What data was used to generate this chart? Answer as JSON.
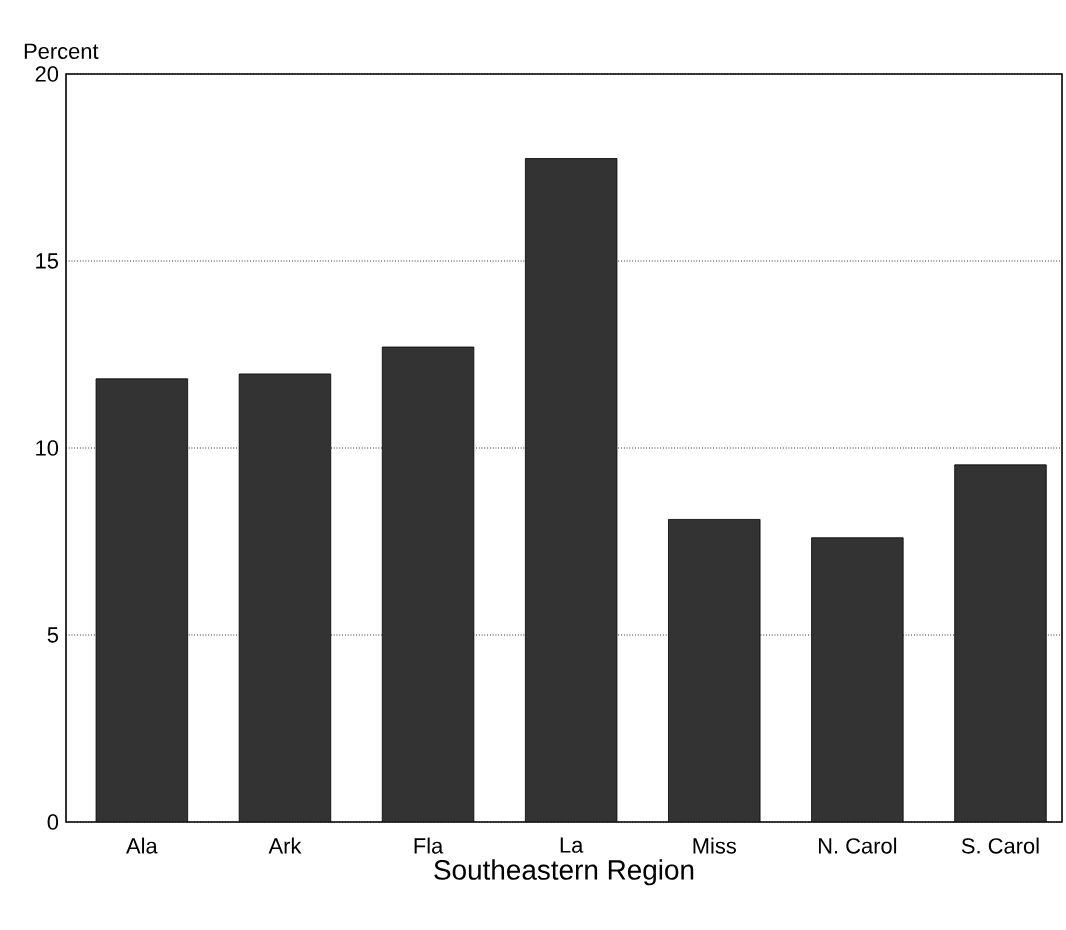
{
  "chart_data": {
    "type": "bar",
    "xlabel": "Southeastern Region",
    "ylabel": "Percent",
    "categories": [
      "Ala",
      "Ark",
      "Fla",
      "La",
      "Miss",
      "N. Carol",
      "S. Carol"
    ],
    "values": [
      11.85,
      11.98,
      12.7,
      17.74,
      8.09,
      7.6,
      9.55
    ],
    "color": "#333333",
    "ylim": [
      0,
      20
    ],
    "yticks": [
      0,
      5,
      10,
      15,
      20
    ],
    "grid": "y"
  }
}
